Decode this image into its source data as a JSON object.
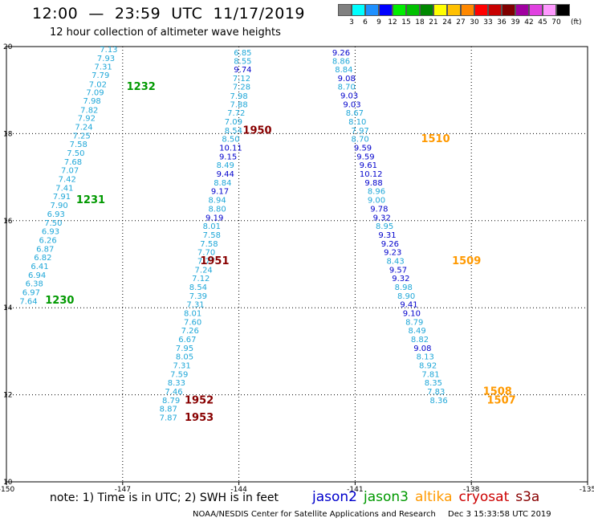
{
  "header": {
    "title": "12:00  —  23:59  UTC  11/17/2019",
    "subtitle": "12 hour collection of altimeter wave heights"
  },
  "legend": {
    "unit": "(ft)",
    "bins": [
      {
        "label": "3",
        "color": "#808080"
      },
      {
        "label": "6",
        "color": "#00ffff"
      },
      {
        "label": "9",
        "color": "#1e90ff"
      },
      {
        "label": "12",
        "color": "#0000ff"
      },
      {
        "label": "15",
        "color": "#00ee00"
      },
      {
        "label": "18",
        "color": "#00c000"
      },
      {
        "label": "21",
        "color": "#008800"
      },
      {
        "label": "24",
        "color": "#ffff00"
      },
      {
        "label": "27",
        "color": "#ffc000"
      },
      {
        "label": "30",
        "color": "#ff8800"
      },
      {
        "label": "33",
        "color": "#ff0000"
      },
      {
        "label": "36",
        "color": "#c80000"
      },
      {
        "label": "39",
        "color": "#800000"
      },
      {
        "label": "42",
        "color": "#a000a0"
      },
      {
        "label": "45",
        "color": "#e040e0"
      },
      {
        "label": "70",
        "color": "#ff99ff"
      },
      {
        "label": "",
        "color": "#000000"
      }
    ]
  },
  "note": "note:  1) Time is in UTC;  2) SWH is in feet",
  "satellites": [
    {
      "name": "jason2",
      "color": "#0000cc"
    },
    {
      "name": "jason3",
      "color": "#009900"
    },
    {
      "name": "altika",
      "color": "#ff9900"
    },
    {
      "name": "cryosat",
      "color": "#cc0000"
    },
    {
      "name": "s3a",
      "color": "#880000"
    }
  ],
  "footer": {
    "agency": "NOAA/NESDIS Center for Satellite Applications and Research",
    "timestamp": "Dec  3 15:33:58 UTC 2019"
  },
  "chart_data": {
    "type": "scatter",
    "xlim": [
      -150,
      -135
    ],
    "ylim": [
      10,
      20
    ],
    "xticks": [
      "-150",
      "-147",
      "-144",
      "-141",
      "-138",
      "-135"
    ],
    "yticks": [
      "10",
      "12",
      "14",
      "16",
      "18",
      "20"
    ],
    "grid": true,
    "value_color": "#1fa7d8",
    "series": [
      {
        "points": [
          {
            "x": -147.36,
            "y": 19.87,
            "v": "7.13"
          },
          {
            "x": -147.43,
            "y": 19.67,
            "v": "7.93"
          },
          {
            "x": -147.5,
            "y": 19.47,
            "v": "7.31"
          },
          {
            "x": -147.57,
            "y": 19.28,
            "v": "7.79"
          },
          {
            "x": -147.64,
            "y": 19.07,
            "v": "7.02"
          },
          {
            "x": -147.71,
            "y": 18.88,
            "v": "7.09"
          },
          {
            "x": -147.79,
            "y": 18.69,
            "v": "7.98"
          },
          {
            "x": -147.86,
            "y": 18.48,
            "v": "7.82"
          },
          {
            "x": -147.93,
            "y": 18.29,
            "v": "7.92"
          },
          {
            "x": -148.0,
            "y": 18.09,
            "v": "7.24"
          },
          {
            "x": -148.06,
            "y": 17.89,
            "v": "7.25"
          },
          {
            "x": -148.14,
            "y": 17.69,
            "v": "7.58"
          },
          {
            "x": -148.21,
            "y": 17.49,
            "v": "7.50"
          },
          {
            "x": -148.28,
            "y": 17.29,
            "v": "7.68"
          },
          {
            "x": -148.36,
            "y": 17.09,
            "v": "7.07"
          },
          {
            "x": -148.43,
            "y": 16.89,
            "v": "7.42"
          },
          {
            "x": -148.5,
            "y": 16.69,
            "v": "7.41"
          },
          {
            "x": -148.57,
            "y": 16.49,
            "v": "7.91"
          },
          {
            "x": -148.64,
            "y": 16.29,
            "v": "7.90"
          },
          {
            "x": -148.72,
            "y": 16.09,
            "v": "6.93"
          },
          {
            "x": -148.79,
            "y": 15.89,
            "v": "7.50"
          },
          {
            "x": -148.86,
            "y": 15.69,
            "v": "6.93"
          },
          {
            "x": -148.93,
            "y": 15.49,
            "v": "6.26"
          },
          {
            "x": -149.0,
            "y": 15.29,
            "v": "6.87"
          },
          {
            "x": -149.06,
            "y": 15.09,
            "v": "6.82"
          },
          {
            "x": -149.14,
            "y": 14.89,
            "v": "6.41"
          },
          {
            "x": -149.21,
            "y": 14.69,
            "v": "6.94"
          },
          {
            "x": -149.28,
            "y": 14.49,
            "v": "6.38"
          },
          {
            "x": -149.36,
            "y": 14.29,
            "v": "6.97"
          },
          {
            "x": -149.43,
            "y": 14.09,
            "v": "7.64"
          }
        ]
      },
      {
        "points": [
          {
            "x": -143.9,
            "y": 19.8,
            "v": "6.85"
          },
          {
            "x": -143.9,
            "y": 19.6,
            "v": "8.55"
          },
          {
            "x": -143.9,
            "y": 19.41,
            "v": "9.74",
            "c": "#0000cc"
          },
          {
            "x": -143.93,
            "y": 19.21,
            "v": "7.12"
          },
          {
            "x": -143.93,
            "y": 19.01,
            "v": "7.28"
          },
          {
            "x": -144.0,
            "y": 18.8,
            "v": "7.98"
          },
          {
            "x": -144.0,
            "y": 18.61,
            "v": "7.88"
          },
          {
            "x": -144.07,
            "y": 18.41,
            "v": "7.72"
          },
          {
            "x": -144.14,
            "y": 18.21,
            "v": "7.09"
          },
          {
            "x": -144.14,
            "y": 18.01,
            "v": "8.54"
          },
          {
            "x": -144.21,
            "y": 17.81,
            "v": "8.50"
          },
          {
            "x": -144.21,
            "y": 17.61,
            "v": "10.11",
            "c": "#0000cc"
          },
          {
            "x": -144.28,
            "y": 17.41,
            "v": "9.15",
            "c": "#0000cc"
          },
          {
            "x": -144.35,
            "y": 17.21,
            "v": "8.49"
          },
          {
            "x": -144.35,
            "y": 17.01,
            "v": "9.44",
            "c": "#0000cc"
          },
          {
            "x": -144.42,
            "y": 16.81,
            "v": "8.84"
          },
          {
            "x": -144.49,
            "y": 16.61,
            "v": "9.17",
            "c": "#0000cc"
          },
          {
            "x": -144.56,
            "y": 16.41,
            "v": "8.94"
          },
          {
            "x": -144.56,
            "y": 16.21,
            "v": "8.80"
          },
          {
            "x": -144.63,
            "y": 16.01,
            "v": "9.19",
            "c": "#0000cc"
          },
          {
            "x": -144.7,
            "y": 15.81,
            "v": "8.01"
          },
          {
            "x": -144.7,
            "y": 15.61,
            "v": "7.58"
          },
          {
            "x": -144.77,
            "y": 15.41,
            "v": "7.58"
          },
          {
            "x": -144.84,
            "y": 15.21,
            "v": "7.70"
          },
          {
            "x": -144.84,
            "y": 15.01,
            "v": "7.77"
          },
          {
            "x": -144.91,
            "y": 14.81,
            "v": "7.24"
          },
          {
            "x": -144.98,
            "y": 14.61,
            "v": "7.12"
          },
          {
            "x": -145.05,
            "y": 14.41,
            "v": "8.54"
          },
          {
            "x": -145.05,
            "y": 14.21,
            "v": "7.39"
          },
          {
            "x": -145.12,
            "y": 14.01,
            "v": "7.31"
          },
          {
            "x": -145.19,
            "y": 13.81,
            "v": "8.01"
          },
          {
            "x": -145.19,
            "y": 13.61,
            "v": "7.60"
          },
          {
            "x": -145.26,
            "y": 13.41,
            "v": "7.26"
          },
          {
            "x": -145.33,
            "y": 13.21,
            "v": "6.67"
          },
          {
            "x": -145.4,
            "y": 13.01,
            "v": "7.95"
          },
          {
            "x": -145.4,
            "y": 12.81,
            "v": "8.05"
          },
          {
            "x": -145.47,
            "y": 12.61,
            "v": "7.31"
          },
          {
            "x": -145.54,
            "y": 12.41,
            "v": "7.59"
          },
          {
            "x": -145.61,
            "y": 12.21,
            "v": "8.33"
          },
          {
            "x": -145.68,
            "y": 12.01,
            "v": "7.46"
          },
          {
            "x": -145.75,
            "y": 11.81,
            "v": "8.79"
          },
          {
            "x": -145.82,
            "y": 11.61,
            "v": "8.87"
          },
          {
            "x": -145.82,
            "y": 11.41,
            "v": "7.87"
          }
        ]
      },
      {
        "points": [
          {
            "x": -141.36,
            "y": 19.8,
            "v": "9.26",
            "c": "#0000cc"
          },
          {
            "x": -141.36,
            "y": 19.6,
            "v": "8.86"
          },
          {
            "x": -141.29,
            "y": 19.41,
            "v": "8.84"
          },
          {
            "x": -141.22,
            "y": 19.21,
            "v": "9.08",
            "c": "#0000cc"
          },
          {
            "x": -141.22,
            "y": 19.01,
            "v": "8.70"
          },
          {
            "x": -141.15,
            "y": 18.81,
            "v": "9.03",
            "c": "#0000cc"
          },
          {
            "x": -141.08,
            "y": 18.61,
            "v": "9.03",
            "c": "#0000cc"
          },
          {
            "x": -141.01,
            "y": 18.41,
            "v": "8.67"
          },
          {
            "x": -140.94,
            "y": 18.21,
            "v": "8.10"
          },
          {
            "x": -140.87,
            "y": 18.01,
            "v": "7.97"
          },
          {
            "x": -140.87,
            "y": 17.81,
            "v": "8.70"
          },
          {
            "x": -140.8,
            "y": 17.61,
            "v": "9.59",
            "c": "#0000cc"
          },
          {
            "x": -140.73,
            "y": 17.41,
            "v": "9.59",
            "c": "#0000cc"
          },
          {
            "x": -140.66,
            "y": 17.21,
            "v": "9.61",
            "c": "#0000cc"
          },
          {
            "x": -140.59,
            "y": 17.01,
            "v": "10.12",
            "c": "#0000cc"
          },
          {
            "x": -140.52,
            "y": 16.81,
            "v": "9.88",
            "c": "#0000cc"
          },
          {
            "x": -140.45,
            "y": 16.61,
            "v": "8.96"
          },
          {
            "x": -140.45,
            "y": 16.41,
            "v": "9.00"
          },
          {
            "x": -140.38,
            "y": 16.21,
            "v": "9.78",
            "c": "#0000cc"
          },
          {
            "x": -140.31,
            "y": 16.01,
            "v": "9.32",
            "c": "#0000cc"
          },
          {
            "x": -140.24,
            "y": 15.81,
            "v": "8.95"
          },
          {
            "x": -140.17,
            "y": 15.61,
            "v": "9.31",
            "c": "#0000cc"
          },
          {
            "x": -140.1,
            "y": 15.41,
            "v": "9.26",
            "c": "#0000cc"
          },
          {
            "x": -140.03,
            "y": 15.21,
            "v": "9.23",
            "c": "#0000cc"
          },
          {
            "x": -139.96,
            "y": 15.01,
            "v": "8.43"
          },
          {
            "x": -139.89,
            "y": 14.81,
            "v": "9.57",
            "c": "#0000cc"
          },
          {
            "x": -139.82,
            "y": 14.61,
            "v": "9.32",
            "c": "#0000cc"
          },
          {
            "x": -139.75,
            "y": 14.41,
            "v": "8.98"
          },
          {
            "x": -139.68,
            "y": 14.21,
            "v": "8.90"
          },
          {
            "x": -139.61,
            "y": 14.01,
            "v": "9.41",
            "c": "#0000cc"
          },
          {
            "x": -139.54,
            "y": 13.81,
            "v": "9.10",
            "c": "#0000cc"
          },
          {
            "x": -139.47,
            "y": 13.61,
            "v": "8.79"
          },
          {
            "x": -139.4,
            "y": 13.41,
            "v": "8.49"
          },
          {
            "x": -139.33,
            "y": 13.21,
            "v": "8.82"
          },
          {
            "x": -139.26,
            "y": 13.01,
            "v": "9.08",
            "c": "#0000cc"
          },
          {
            "x": -139.19,
            "y": 12.81,
            "v": "8.13"
          },
          {
            "x": -139.12,
            "y": 12.61,
            "v": "8.92"
          },
          {
            "x": -139.05,
            "y": 12.41,
            "v": "7.81"
          },
          {
            "x": -138.98,
            "y": 12.21,
            "v": "8.35"
          },
          {
            "x": -138.91,
            "y": 12.01,
            "v": "7.83"
          },
          {
            "x": -138.84,
            "y": 11.81,
            "v": "8.36"
          }
        ]
      }
    ],
    "track_labels": [
      {
        "text": "1232",
        "x": -146.9,
        "y": 19.0,
        "color": "#009900"
      },
      {
        "text": "1231",
        "x": -148.2,
        "y": 16.4,
        "color": "#009900"
      },
      {
        "text": "1230",
        "x": -149.0,
        "y": 14.1,
        "color": "#009900"
      },
      {
        "text": "1950",
        "x": -143.9,
        "y": 18.0,
        "color": "#880000"
      },
      {
        "text": "1951",
        "x": -145.0,
        "y": 15.0,
        "color": "#880000"
      },
      {
        "text": "1952",
        "x": -145.4,
        "y": 11.8,
        "color": "#880000"
      },
      {
        "text": "1953",
        "x": -145.4,
        "y": 11.4,
        "color": "#880000"
      },
      {
        "text": "1510",
        "x": -139.3,
        "y": 17.8,
        "color": "#ff9900"
      },
      {
        "text": "1509",
        "x": -138.5,
        "y": 15.0,
        "color": "#ff9900"
      },
      {
        "text": "1508",
        "x": -137.7,
        "y": 12.0,
        "color": "#ff9900"
      },
      {
        "text": "1507",
        "x": -137.6,
        "y": 11.8,
        "color": "#ff9900"
      }
    ]
  }
}
